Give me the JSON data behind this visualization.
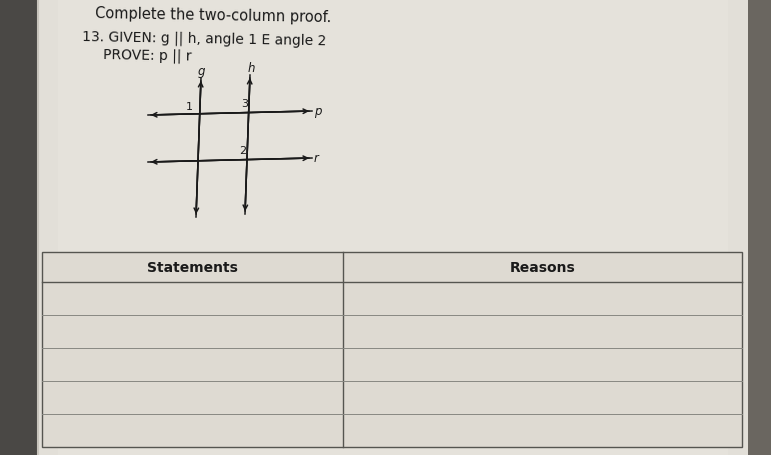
{
  "title": "Complete the two-column proof.",
  "problem_number": "13.",
  "given_text": "GIVEN: g || h, angle 1 E angle 2",
  "prove_text": "PROVE: p || r",
  "bg_color": "#7a7670",
  "page_color": "#dddad4",
  "table_bg": "#d6d3cc",
  "table_header_left": "Statements",
  "table_header_right": "Reasons",
  "num_rows": 5,
  "diagram": {
    "g_label": "g",
    "h_label": "h",
    "p_label": "p",
    "r_label": "r",
    "angle1_label": "1",
    "angle2_label": "2",
    "angle3_label": "3"
  }
}
